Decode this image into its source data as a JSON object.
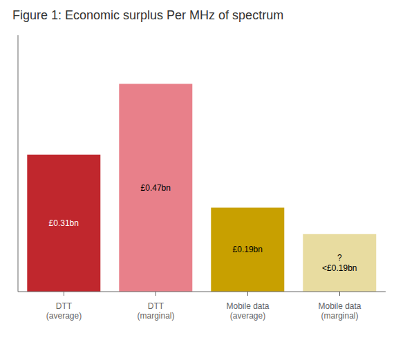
{
  "chart_data": {
    "type": "bar",
    "title": "Figure 1: Economic surplus Per MHz of spectrum",
    "categories": [
      "DTT\n(average)",
      "DTT\n(marginal)",
      "Mobile data\n(average)",
      "Mobile data\n(marginal)"
    ],
    "values": [
      0.31,
      0.47,
      0.19,
      0.13
    ],
    "value_labels": [
      "£0.31bn",
      "£0.47bn",
      "£0.19bn",
      "?\n<£0.19bn"
    ],
    "colors": [
      "#C0272D",
      "#E8808A",
      "#C8A000",
      "#E8DCA0"
    ],
    "ylim": [
      0,
      0.58
    ],
    "data_labels": true,
    "tick_labels": "x",
    "grid": false
  }
}
